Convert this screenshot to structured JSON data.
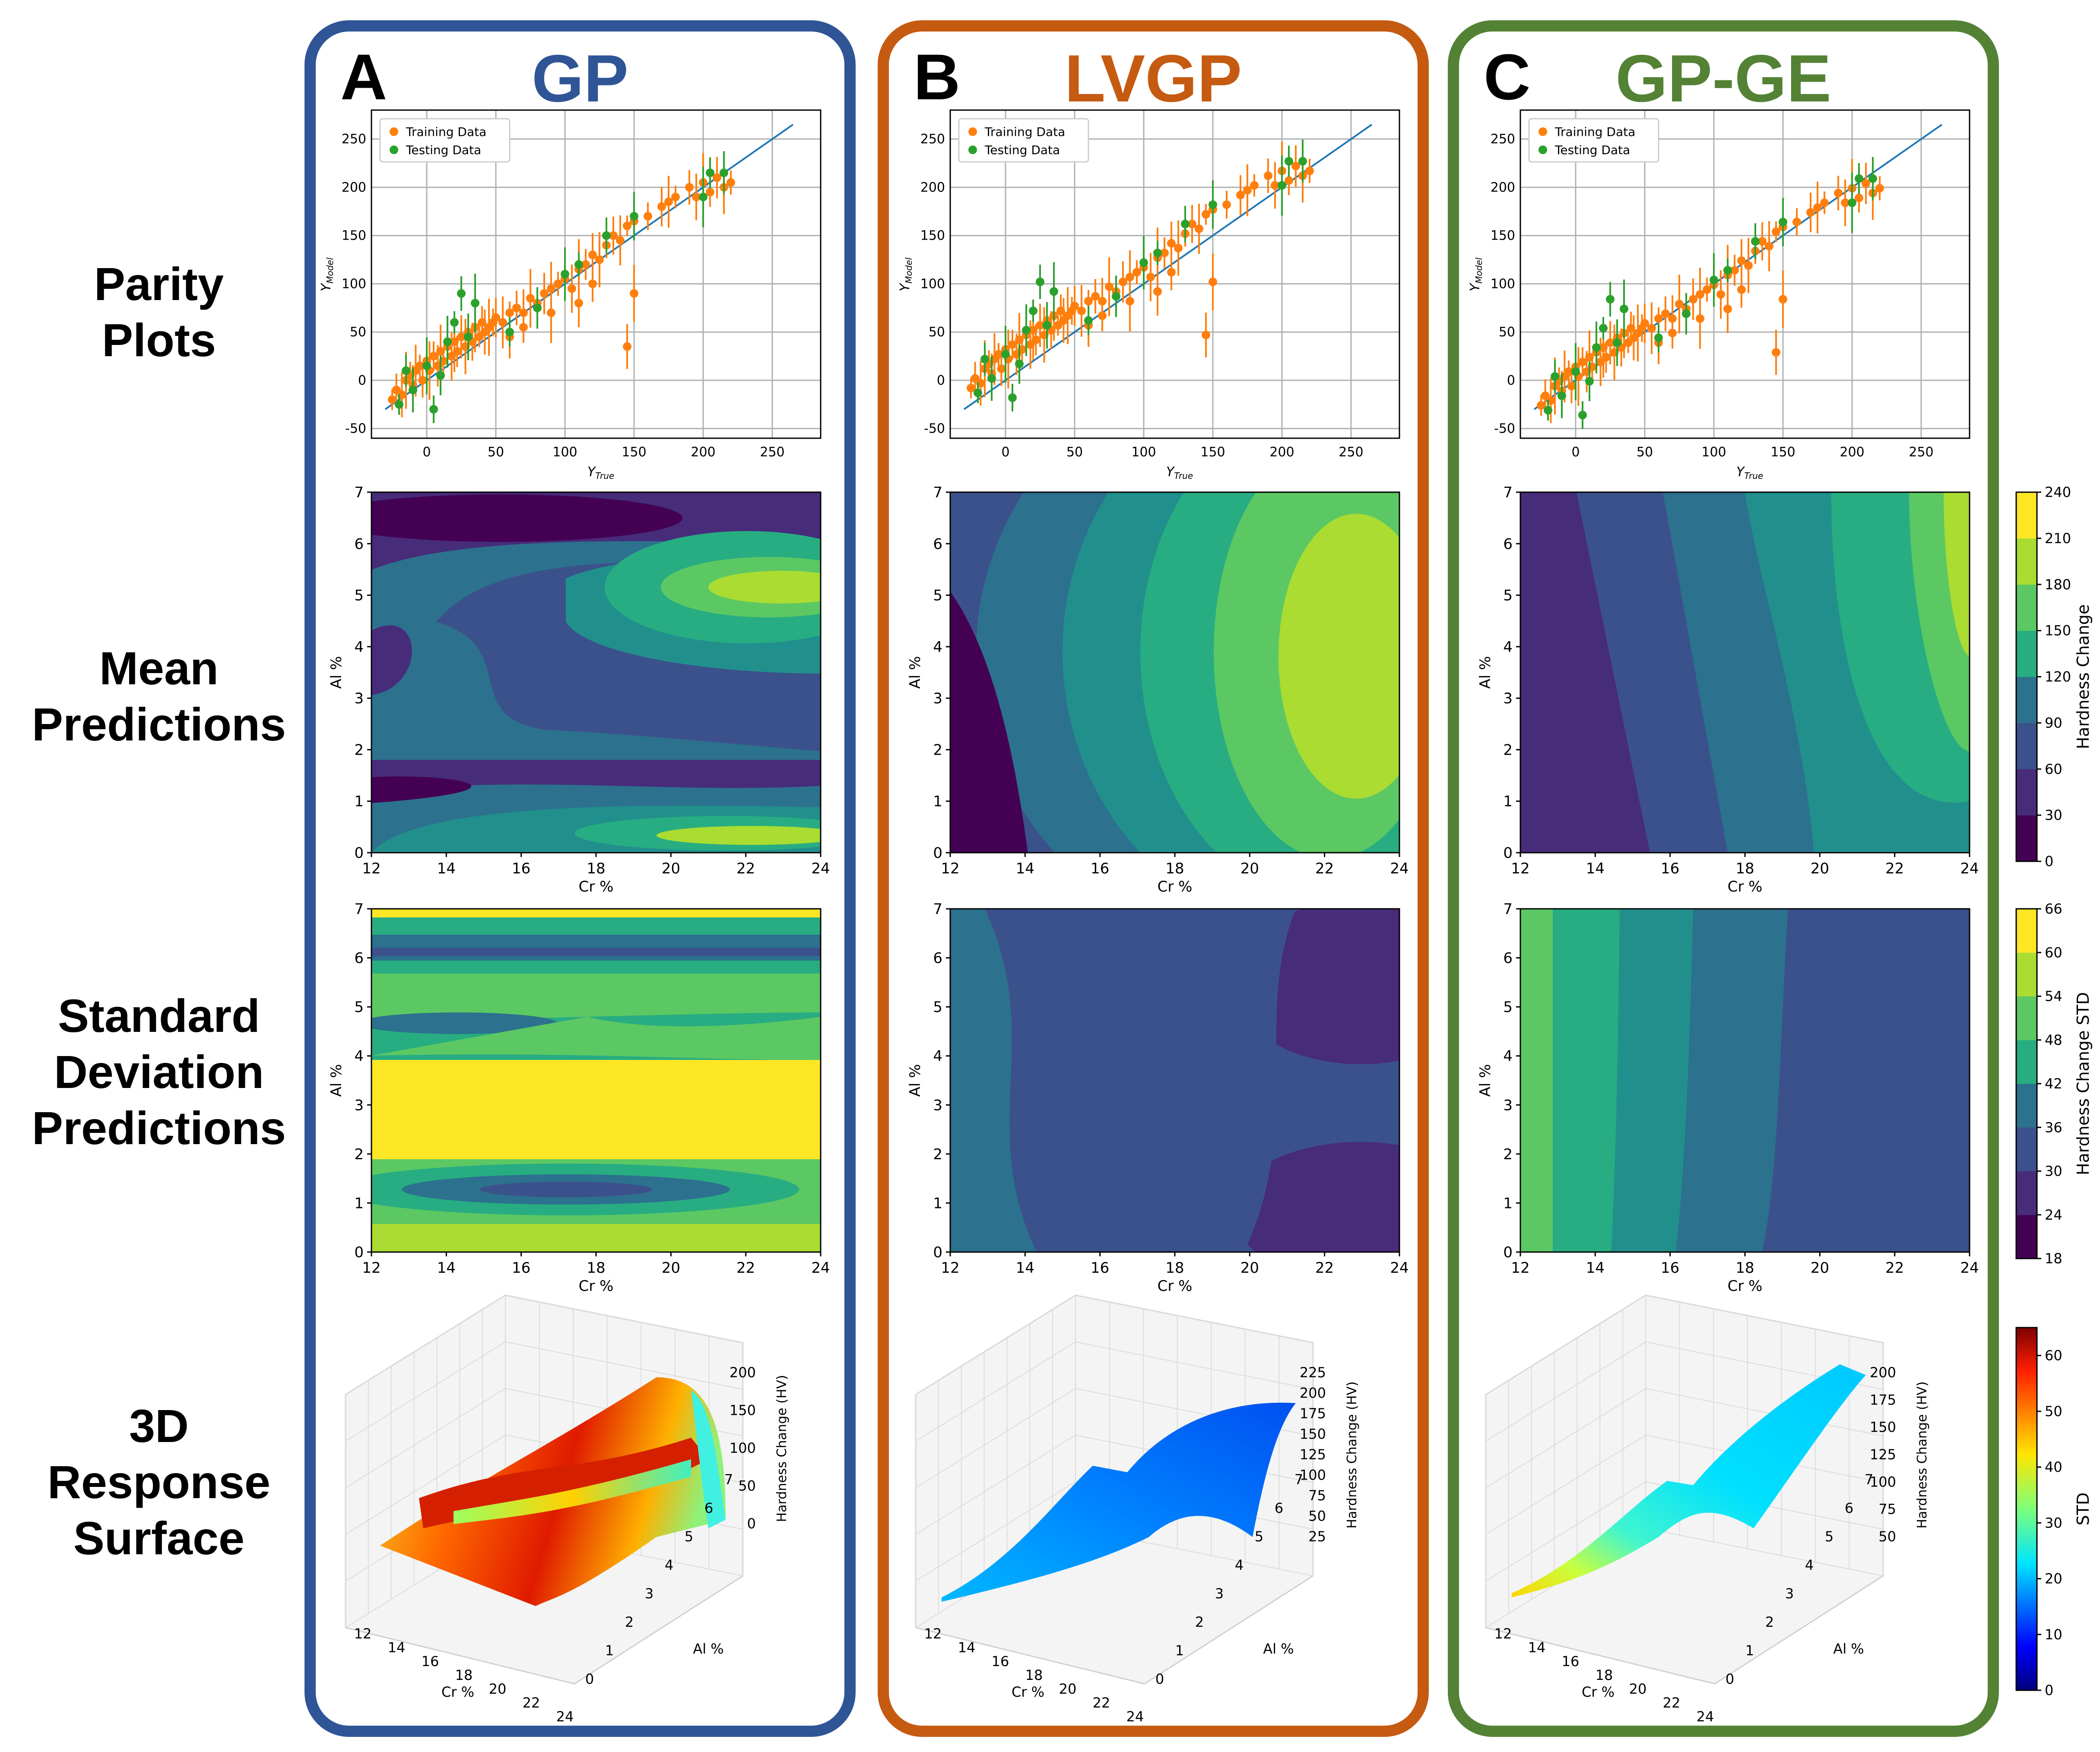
{
  "panels": [
    {
      "letter": "A",
      "name": "GP",
      "color": "#2f5597"
    },
    {
      "letter": "B",
      "name": "LVGP",
      "color": "#c55a11"
    },
    {
      "letter": "C",
      "name": "GP-GE",
      "color": "#548235"
    }
  ],
  "row_labels": [
    {
      "lines": [
        "Parity",
        "Plots"
      ]
    },
    {
      "lines": [
        "Mean",
        "Predictions"
      ]
    },
    {
      "lines": [
        "Standard",
        "Deviation",
        "Predictions"
      ]
    },
    {
      "lines": [
        "3D",
        "Response",
        "Surface"
      ]
    }
  ],
  "colors": {
    "training": "#ff7f0e",
    "testing": "#2ca02c",
    "fitline": "#1f77b4",
    "viridis": [
      "#440154",
      "#472c7a",
      "#3b518b",
      "#2c718e",
      "#21908d",
      "#27ad81",
      "#5cc863",
      "#aadc32",
      "#fde725"
    ]
  },
  "chart_data": [
    {
      "id": "parity",
      "type": "scatter",
      "legend": [
        "Training Data",
        "Testing Data"
      ],
      "xlabel": "Y_True",
      "ylabel": "Y_Model",
      "xticks": [
        0,
        50,
        100,
        150,
        200,
        250
      ],
      "yticks": [
        -50,
        0,
        50,
        100,
        150,
        200,
        250
      ],
      "xlim": [
        -40,
        285
      ],
      "ylim": [
        -60,
        280
      ],
      "fit_line": [
        [
          -30,
          -30
        ],
        [
          265,
          265
        ]
      ],
      "series": {
        "training": [
          [
            -25,
            -20
          ],
          [
            -22,
            -10
          ],
          [
            -18,
            -15
          ],
          [
            -15,
            0
          ],
          [
            -12,
            5
          ],
          [
            -10,
            -5
          ],
          [
            -8,
            10
          ],
          [
            -5,
            15
          ],
          [
            -3,
            0
          ],
          [
            0,
            20
          ],
          [
            2,
            10
          ],
          [
            5,
            25
          ],
          [
            8,
            15
          ],
          [
            10,
            30
          ],
          [
            12,
            20
          ],
          [
            15,
            35
          ],
          [
            18,
            25
          ],
          [
            20,
            40
          ],
          [
            22,
            30
          ],
          [
            25,
            45
          ],
          [
            28,
            35
          ],
          [
            30,
            50
          ],
          [
            33,
            40
          ],
          [
            35,
            55
          ],
          [
            38,
            45
          ],
          [
            40,
            60
          ],
          [
            42,
            50
          ],
          [
            45,
            55
          ],
          [
            48,
            60
          ],
          [
            50,
            65
          ],
          [
            55,
            60
          ],
          [
            60,
            70
          ],
          [
            65,
            75
          ],
          [
            70,
            70
          ],
          [
            75,
            85
          ],
          [
            80,
            80
          ],
          [
            85,
            90
          ],
          [
            90,
            95
          ],
          [
            95,
            100
          ],
          [
            100,
            105
          ],
          [
            105,
            95
          ],
          [
            110,
            115
          ],
          [
            115,
            120
          ],
          [
            120,
            130
          ],
          [
            125,
            125
          ],
          [
            130,
            140
          ],
          [
            135,
            150
          ],
          [
            140,
            145
          ],
          [
            145,
            160
          ],
          [
            150,
            165
          ],
          [
            145,
            35
          ],
          [
            150,
            90
          ],
          [
            160,
            170
          ],
          [
            170,
            180
          ],
          [
            175,
            185
          ],
          [
            180,
            190
          ],
          [
            190,
            200
          ],
          [
            195,
            190
          ],
          [
            200,
            205
          ],
          [
            205,
            195
          ],
          [
            210,
            210
          ],
          [
            215,
            200
          ],
          [
            220,
            205
          ],
          [
            120,
            100
          ],
          [
            110,
            80
          ],
          [
            90,
            70
          ],
          [
            70,
            55
          ],
          [
            60,
            45
          ]
        ],
        "testing": [
          [
            -20,
            -25
          ],
          [
            -15,
            10
          ],
          [
            -10,
            -10
          ],
          [
            0,
            15
          ],
          [
            5,
            -30
          ],
          [
            10,
            5
          ],
          [
            15,
            40
          ],
          [
            20,
            60
          ],
          [
            25,
            90
          ],
          [
            30,
            45
          ],
          [
            35,
            80
          ],
          [
            60,
            50
          ],
          [
            80,
            75
          ],
          [
            100,
            110
          ],
          [
            110,
            120
          ],
          [
            130,
            150
          ],
          [
            150,
            170
          ],
          [
            200,
            190
          ],
          [
            205,
            215
          ],
          [
            215,
            215
          ]
        ]
      }
    },
    {
      "id": "mean",
      "type": "contour",
      "xlabel": "Cr %",
      "ylabel": "Al %",
      "xticks": [
        12,
        14,
        16,
        18,
        20,
        22,
        24
      ],
      "yticks": [
        0,
        1,
        2,
        3,
        4,
        5,
        6,
        7
      ],
      "xlim": [
        12,
        24
      ],
      "ylim": [
        0,
        7
      ],
      "colorbar": {
        "label": "Hardness Change",
        "ticks": [
          0,
          30,
          60,
          90,
          120,
          150,
          180,
          210,
          240
        ],
        "range": [
          0,
          240
        ]
      }
    },
    {
      "id": "std",
      "type": "contour",
      "xlabel": "Cr %",
      "ylabel": "Al %",
      "xticks": [
        12,
        14,
        16,
        18,
        20,
        22,
        24
      ],
      "yticks": [
        0,
        1,
        2,
        3,
        4,
        5,
        6,
        7
      ],
      "xlim": [
        12,
        24
      ],
      "ylim": [
        0,
        7
      ],
      "colorbar": {
        "label": "Hardness Change STD",
        "ticks": [
          18,
          24,
          30,
          36,
          42,
          48,
          54,
          60,
          66
        ],
        "range": [
          18,
          66
        ]
      }
    },
    {
      "id": "surface",
      "type": "surface3d",
      "xlabel": "Cr %",
      "ylabel": "Al %",
      "zlabel": "Hardness Change (HV)",
      "xticks": [
        12,
        14,
        16,
        18,
        20,
        22,
        24
      ],
      "yticks": [
        0,
        1,
        2,
        3,
        4,
        5,
        6,
        7
      ],
      "zticks": {
        "A": [
          0,
          50,
          100,
          150,
          200
        ],
        "B": [
          25,
          50,
          75,
          100,
          125,
          150,
          175,
          200,
          225
        ],
        "C": [
          50,
          75,
          100,
          125,
          150,
          175,
          200
        ]
      },
      "colorbar": {
        "label": "STD",
        "ticks": [
          0,
          10,
          20,
          30,
          40,
          50,
          60
        ],
        "range": [
          0,
          65
        ]
      }
    }
  ]
}
